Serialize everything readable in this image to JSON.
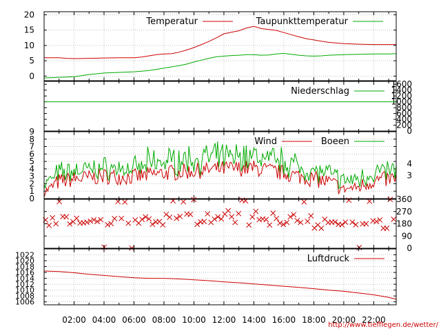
{
  "colors": {
    "red": "#cc0000",
    "green": "#00aa00",
    "grid": "#999999"
  },
  "x_axis": {
    "labels": [
      "02:00",
      "04:00",
      "06:00",
      "08:00",
      "10:00",
      "12:00",
      "14:00",
      "16:00",
      "18:00",
      "20:00",
      "22:00"
    ],
    "range_hours": [
      0,
      23.5
    ]
  },
  "credit": "http://www.tiefflegen.de/wetter/",
  "chart_data": [
    {
      "type": "line",
      "name": "temperature",
      "ylim": [
        -1.5,
        21
      ],
      "yticks": [
        0,
        5,
        10,
        15,
        20
      ],
      "grid": true,
      "legend_position": "top-right",
      "x": [
        0,
        0.5,
        1,
        1.5,
        2,
        3,
        4,
        5,
        6,
        6.5,
        7,
        7.5,
        8,
        8.5,
        9,
        9.5,
        10,
        10.5,
        11,
        11.5,
        12,
        12.5,
        13,
        13.5,
        14,
        14.5,
        15,
        15.5,
        16,
        16.5,
        17,
        17.5,
        18,
        18.5,
        19,
        20,
        21,
        22,
        23,
        23.5
      ],
      "series": [
        {
          "name": "Temperatur",
          "color_key": "red",
          "values": [
            6,
            6,
            6,
            5.8,
            5.7,
            5.8,
            5.9,
            6,
            6,
            6.2,
            6.6,
            7,
            7.2,
            7.3,
            7.8,
            8.5,
            9.3,
            10.3,
            11.3,
            12.5,
            13.8,
            14.3,
            14.8,
            15.7,
            16.2,
            15.5,
            15.2,
            14.9,
            14.2,
            13.5,
            12.8,
            12.2,
            11.8,
            11.4,
            11,
            10.6,
            10.4,
            10.3,
            10.3,
            10.3
          ]
        },
        {
          "name": "Taupunkttemperatur",
          "color_key": "green",
          "values": [
            -0.6,
            -0.5,
            -0.4,
            -0.3,
            -0.2,
            0.5,
            1,
            1.2,
            1.4,
            1.6,
            1.8,
            2.2,
            2.6,
            3,
            3.4,
            3.9,
            4.6,
            5.2,
            5.8,
            6.3,
            6.5,
            6.7,
            6.8,
            7,
            7,
            6.8,
            6.9,
            7.2,
            7.4,
            7.1,
            6.8,
            6.6,
            6.5,
            6.6,
            6.8,
            7,
            7.1,
            7.2,
            7.2,
            7.3
          ]
        }
      ]
    },
    {
      "type": "line",
      "name": "precipitation",
      "ylim": [
        0,
        1700
      ],
      "yticks": [
        0,
        200,
        400,
        600,
        800,
        1000,
        1200,
        1400,
        1600
      ],
      "grid": false,
      "legend_position": "top-right",
      "x": [
        0,
        23.5
      ],
      "series": [
        {
          "name": "Niederschlag",
          "color_key": "green",
          "values": [
            1000,
            1000
          ]
        }
      ]
    },
    {
      "type": "line",
      "name": "wind",
      "ylim": [
        0,
        9
      ],
      "yticks": [
        0,
        1,
        2,
        3,
        4,
        5,
        6,
        7,
        8,
        9
      ],
      "y2_labels": [
        "3",
        "4"
      ],
      "grid": true,
      "legend_position": "top-right",
      "x_step_hours": 0.0833,
      "series": [
        {
          "name": "Wind",
          "color_key": "red",
          "values": []
        },
        {
          "name": "Boeen",
          "color_key": "green",
          "values": []
        }
      ],
      "wind_profile": {
        "x": [
          0,
          1,
          2,
          4,
          6,
          8,
          10,
          12,
          14,
          16,
          18,
          19,
          20,
          21,
          22,
          23.5
        ],
        "mean": [
          0.8,
          2.2,
          2.5,
          2.9,
          2.8,
          3.3,
          3.6,
          3.9,
          4.0,
          3.3,
          2.5,
          2.1,
          1.2,
          1.5,
          2.3,
          2.6
        ]
      }
    },
    {
      "type": "scatter",
      "name": "wind_direction",
      "ylim": [
        0,
        360
      ],
      "yticks": [
        0,
        90,
        180,
        270,
        360
      ],
      "grid": true,
      "series": [
        {
          "name": "direction",
          "color_key": "red",
          "marker": "x",
          "values": []
        }
      ]
    },
    {
      "type": "line",
      "name": "pressure",
      "ylim": [
        1005,
        1024
      ],
      "yticks": [
        1006,
        1008,
        1010,
        1012,
        1014,
        1016,
        1018,
        1020,
        1022
      ],
      "grid": true,
      "legend_position": "top-right",
      "x": [
        0,
        1,
        2,
        3,
        4,
        5,
        6,
        7,
        8,
        9,
        10,
        11,
        12,
        13,
        14,
        15,
        16,
        17,
        18,
        19,
        20,
        21,
        22,
        23,
        23.5
      ],
      "series": [
        {
          "name": "Luftdruck",
          "color_key": "red",
          "values": [
            1016.5,
            1016.3,
            1015.9,
            1015.4,
            1015,
            1014.6,
            1014.2,
            1014,
            1014,
            1013.8,
            1013.5,
            1013.2,
            1012.8,
            1012.5,
            1012.1,
            1011.7,
            1011.3,
            1010.9,
            1010.5,
            1010,
            1009.6,
            1009,
            1008.4,
            1007.5,
            1006.9
          ]
        }
      ]
    }
  ]
}
